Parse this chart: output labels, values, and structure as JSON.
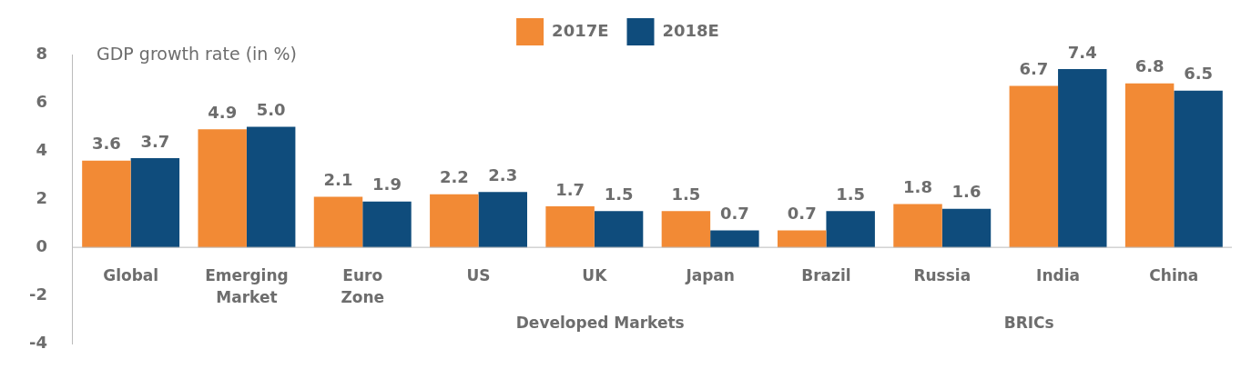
{
  "chart_data": {
    "type": "bar",
    "title": "GDP growth rate (in %)",
    "categories": [
      "Global",
      "Emerging Market",
      "Euro Zone",
      "US",
      "UK",
      "Japan",
      "Brazil",
      "Russia",
      "India",
      "China"
    ],
    "series": [
      {
        "name": "2017E",
        "color": "#f28a35",
        "values": [
          3.6,
          4.9,
          2.1,
          2.2,
          1.7,
          1.5,
          0.7,
          1.8,
          6.7,
          6.8
        ],
        "value_labels": [
          "3.6",
          "4.9",
          "2.1",
          "2.2",
          "1.7",
          "1.5",
          "0.7",
          "1.8",
          "6.7",
          "6.8"
        ]
      },
      {
        "name": "2018E",
        "color": "#0f4c7c",
        "values": [
          3.7,
          5.0,
          1.9,
          2.3,
          1.5,
          0.7,
          1.5,
          1.6,
          7.4,
          6.5
        ],
        "value_labels": [
          "3.7",
          "5.0",
          "1.9",
          "2.3",
          "1.5",
          "0.7",
          "1.5",
          "1.6",
          "7.4",
          "6.5"
        ]
      }
    ],
    "ylim": [
      -4,
      8
    ],
    "yticks": [
      -4,
      -2,
      0,
      2,
      4,
      6,
      8
    ],
    "grid": false,
    "legend": "top",
    "annotations": [
      "Developed Markets",
      "BRICs"
    ]
  }
}
